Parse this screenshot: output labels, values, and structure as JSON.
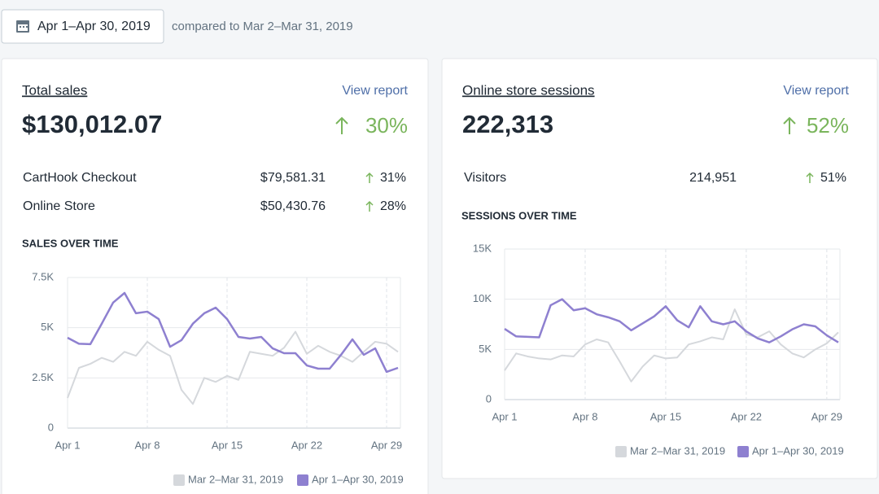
{
  "header": {
    "date_range": "Apr 1–Apr 30, 2019",
    "comparison": "compared to Mar 2–Mar 31, 2019"
  },
  "cards": [
    {
      "title": "Total sales",
      "link": "View report",
      "total": "$130,012.07",
      "change": "30%",
      "rows": [
        {
          "label": "CartHook Checkout",
          "value": "$79,581.31",
          "change": "31%"
        },
        {
          "label": "Online Store",
          "value": "$50,430.76",
          "change": "28%"
        }
      ],
      "chart_title": "SALES OVER TIME"
    },
    {
      "title": "Online store sessions",
      "link": "View report",
      "total": "222,313",
      "change": "52%",
      "rows": [
        {
          "label": "Visitors",
          "value": "214,951",
          "change": "51%"
        }
      ],
      "chart_title": "SESSIONS OVER TIME"
    }
  ],
  "chart_data": [
    {
      "type": "line",
      "categories": [
        "Apr 1",
        null,
        null,
        null,
        null,
        null,
        null,
        "Apr 8",
        null,
        null,
        null,
        null,
        null,
        null,
        "Apr 15",
        null,
        null,
        null,
        null,
        null,
        null,
        "Apr 22",
        null,
        null,
        null,
        null,
        null,
        null,
        "Apr 29",
        null
      ],
      "series": [
        {
          "name": "Mar 2–Mar 31, 2019",
          "color": "#d5d8dc",
          "values": [
            1500,
            3000,
            3200,
            3500,
            3300,
            3800,
            3600,
            4300,
            3900,
            3600,
            1900,
            1200,
            2500,
            2300,
            2600,
            2400,
            3800,
            3700,
            3600,
            4000,
            4800,
            3700,
            4100,
            3800,
            3600,
            3300,
            3800,
            4300,
            4200,
            3800
          ]
        },
        {
          "name": "Apr 1–Apr 30, 2019",
          "color": "#8e80d0",
          "values": [
            4500,
            4200,
            4180,
            5200,
            6250,
            6730,
            5720,
            5800,
            5430,
            4050,
            4380,
            5200,
            5720,
            6000,
            5430,
            4540,
            4460,
            4540,
            3970,
            3730,
            3730,
            3120,
            2960,
            2960,
            3650,
            4420,
            3650,
            3970,
            2800,
            3000
          ]
        }
      ],
      "ylim": [
        0,
        7500
      ],
      "yticks": [
        0,
        {
          "value": 2500,
          "label": "2.5K"
        },
        {
          "value": 5000,
          "label": "5K"
        },
        {
          "value": 7500,
          "label": "7.5K"
        }
      ],
      "grid": true
    },
    {
      "type": "line",
      "categories": [
        "Apr 1",
        null,
        null,
        null,
        null,
        null,
        null,
        "Apr 8",
        null,
        null,
        null,
        null,
        null,
        null,
        "Apr 15",
        null,
        null,
        null,
        null,
        null,
        null,
        "Apr 22",
        null,
        null,
        null,
        null,
        null,
        null,
        "Apr 29",
        null
      ],
      "series": [
        {
          "name": "Mar 2–Mar 31, 2019",
          "color": "#d5d8dc",
          "values": [
            2900,
            4600,
            4300,
            4100,
            4000,
            4400,
            4300,
            5500,
            6000,
            5700,
            3800,
            1800,
            3300,
            4400,
            4100,
            4200,
            5500,
            5800,
            6200,
            6000,
            9000,
            6500,
            6200,
            6800,
            5500,
            4600,
            4200,
            5000,
            5600,
            6700
          ]
        },
        {
          "name": "Apr 1–Apr 30, 2019",
          "color": "#8e80d0",
          "values": [
            7050,
            6300,
            6250,
            6200,
            9400,
            10000,
            8900,
            9100,
            8500,
            8200,
            7800,
            6900,
            7600,
            8300,
            9300,
            7900,
            7200,
            9300,
            7800,
            7500,
            7800,
            6800,
            6100,
            5700,
            6300,
            7000,
            7500,
            7300,
            6400,
            5700
          ]
        }
      ],
      "ylim": [
        0,
        15000
      ],
      "yticks": [
        0,
        {
          "value": 5000,
          "label": "5K"
        },
        {
          "value": 10000,
          "label": "10K"
        },
        {
          "value": 15000,
          "label": "15K"
        }
      ],
      "grid": true
    }
  ]
}
